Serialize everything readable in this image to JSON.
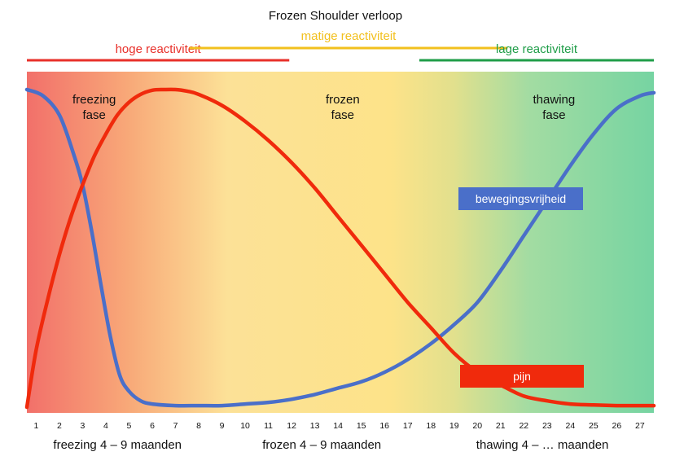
{
  "chart_data": {
    "type": "line",
    "title": "Frozen Shoulder verloop",
    "xlabel": "",
    "ylabel": "",
    "x_ticks": [
      "1",
      "2",
      "3",
      "4",
      "5",
      "6",
      "7",
      "8",
      "9",
      "10",
      "11",
      "12",
      "13",
      "14",
      "15",
      "16",
      "17",
      "18",
      "19",
      "20",
      "21",
      "22",
      "23",
      "24",
      "25",
      "26",
      "27"
    ],
    "xlim": [
      0.6,
      27.6
    ],
    "ylim": [
      0,
      100
    ],
    "grid": false,
    "reactivity_bands": [
      {
        "label": "hoge reactiviteit",
        "color": "#e8302a",
        "x_start": 0.6,
        "x_end": 11.9
      },
      {
        "label": "matige reactiviteit",
        "color": "#f2c01e",
        "x_start": 7.6,
        "x_end": 21.3
      },
      {
        "label": "lage reactiviteit",
        "color": "#1f9d48",
        "x_start": 17.5,
        "x_end": 27.6
      }
    ],
    "phase_labels": [
      {
        "line1": "freezing",
        "line2": "fase",
        "x": 3.5
      },
      {
        "line1": "frozen",
        "line2": "fase",
        "x": 14.2
      },
      {
        "line1": "thawing",
        "line2": "fase",
        "x": 23.3
      }
    ],
    "durations": [
      {
        "label": "freezing 4 – 9 maanden",
        "x": 4.5
      },
      {
        "label": "frozen 4 – 9 maanden",
        "x": 13.3
      },
      {
        "label": "thawing 4 – … maanden",
        "x": 22.8
      }
    ],
    "series": [
      {
        "name": "bewegingsvrijheid",
        "color": "#4a6fc9",
        "label_box_color": "#4a6fc9",
        "x": [
          0.6,
          1.3,
          2.0,
          2.6,
          3.0,
          3.4,
          3.8,
          4.2,
          4.6,
          5.0,
          5.5,
          6.0,
          7.0,
          8.0,
          9.0,
          10.0,
          11.0,
          12.0,
          13.0,
          14.0,
          15.0,
          16.0,
          17.0,
          18.0,
          19.0,
          20.0,
          21.0,
          22.0,
          23.0,
          24.0,
          25.0,
          26.0,
          27.0,
          27.6
        ],
        "y": [
          100,
          98,
          92,
          80,
          70,
          55,
          38,
          22,
          10,
          5,
          2,
          1,
          0.5,
          0.5,
          0.5,
          1,
          1.5,
          2.5,
          4,
          6,
          8,
          11,
          15,
          20,
          26,
          33,
          43,
          54,
          65,
          76,
          86,
          94,
          98,
          99
        ]
      },
      {
        "name": "pijn",
        "color": "#f02a0c",
        "label_box_color": "#f02a0c",
        "x": [
          0.6,
          1.0,
          1.5,
          2.0,
          2.5,
          3.0,
          3.5,
          4.0,
          4.5,
          5.0,
          5.5,
          6.0,
          6.5,
          7.0,
          7.5,
          8.0,
          9.0,
          10.0,
          11.0,
          12.0,
          13.0,
          14.0,
          15.0,
          16.0,
          17.0,
          18.0,
          19.0,
          20.0,
          21.0,
          22.0,
          23.0,
          24.0,
          25.0,
          26.0,
          27.0,
          27.6
        ],
        "y": [
          0,
          18,
          34,
          48,
          60,
          70,
          79,
          86,
          92,
          96,
          98.5,
          99.8,
          100,
          100,
          99.5,
          98.5,
          95,
          90,
          84,
          77,
          69,
          60,
          51,
          42,
          33,
          25,
          17,
          11,
          7,
          3.5,
          2,
          1,
          0.7,
          0.5,
          0.5,
          0.5
        ]
      }
    ]
  }
}
